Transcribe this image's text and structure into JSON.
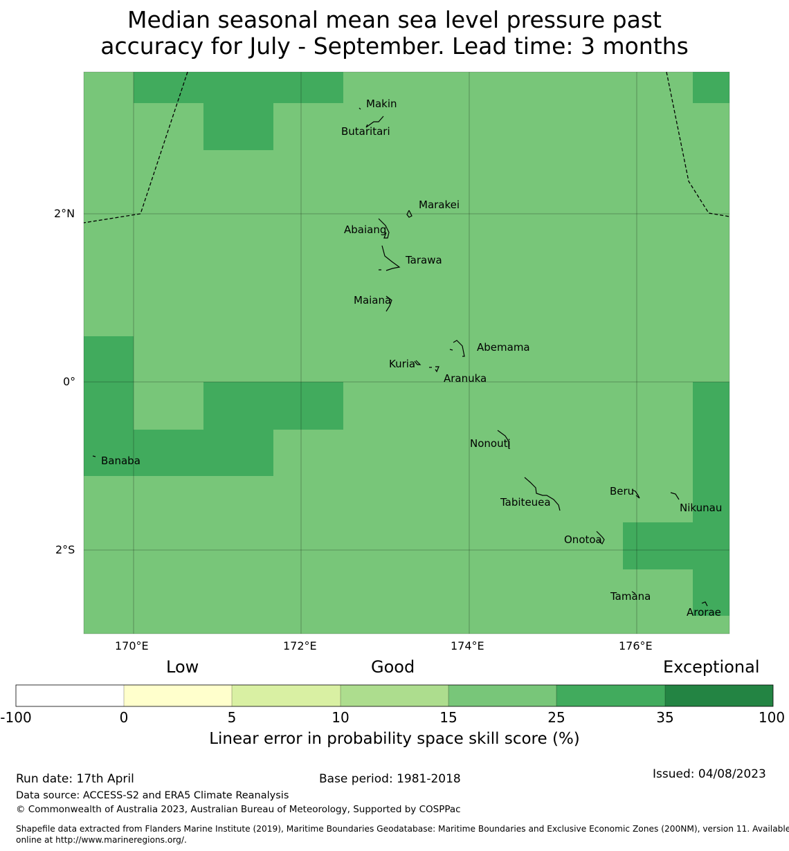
{
  "title": {
    "line1": "Median seasonal mean sea level pressure past",
    "line2": "accuracy for July - September. Lead time: 3 months"
  },
  "map": {
    "lon_ticks": [
      "170°E",
      "172°E",
      "174°E",
      "176°E"
    ],
    "lat_ticks": [
      "2°N",
      "0°",
      "2°S"
    ],
    "islands": [
      "Makin",
      "Butaritari",
      "Marakei",
      "Abaiang",
      "Tarawa",
      "Maiana",
      "Abemama",
      "Kuria",
      "Aranuka",
      "Nonouti",
      "Banaba",
      "Beru",
      "Nikunau",
      "Tabiteuea",
      "Onotoa",
      "Tamana",
      "Arorae"
    ],
    "colors": {
      "skill_15_25": "#78c679",
      "skill_25_35": "#41ab5d"
    }
  },
  "legend": {
    "categories": [
      "Low",
      "Good",
      "Exceptional"
    ],
    "ticks": [
      "-100",
      "0",
      "5",
      "10",
      "15",
      "25",
      "35",
      "100"
    ],
    "colors": [
      "#ffffff",
      "#ffffcc",
      "#d9f0a3",
      "#addd8e",
      "#78c679",
      "#41ab5d",
      "#238443"
    ],
    "label": "Linear error in probability space skill score (%)"
  },
  "footer": {
    "run_date": "Run date: 17th April",
    "base_period": "Base period: 1981-2018",
    "issued": "Issued: 04/08/2023",
    "data_source": "Data source: ACCESS-S2 and ERA5 Climate Reanalysis",
    "copyright": "© Commonwealth of Australia 2023, Australian Bureau of Meteorology, Supported by COSPPac",
    "shapefile_1": "Shapefile data extracted from Flanders Marine Institute (2019), Maritime Boundaries Geodatabase: Maritime Boundaries and Exclusive Economic Zones (200NM), version 11. Available",
    "shapefile_2": "online at http://www.marineregions.org/."
  }
}
